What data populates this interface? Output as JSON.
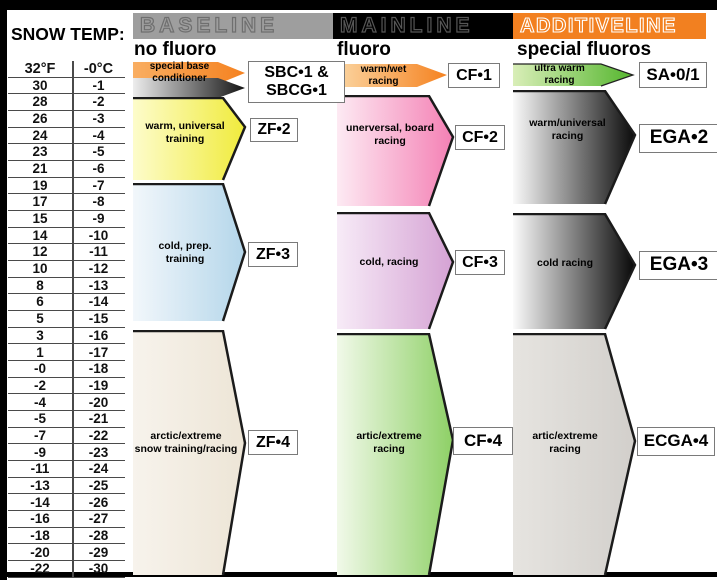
{
  "title": "SNOW TEMP:",
  "temp_table": {
    "rows": [
      [
        "32°F",
        "-0°C"
      ],
      [
        "30",
        "-1"
      ],
      [
        "28",
        "-2"
      ],
      [
        "26",
        "-3"
      ],
      [
        "24",
        "-4"
      ],
      [
        "23",
        "-5"
      ],
      [
        "21",
        "-6"
      ],
      [
        "19",
        "-7"
      ],
      [
        "17",
        "-8"
      ],
      [
        "15",
        "-9"
      ],
      [
        "14",
        "-10"
      ],
      [
        "12",
        "-11"
      ],
      [
        "10",
        "-12"
      ],
      [
        "8",
        "-13"
      ],
      [
        "6",
        "-14"
      ],
      [
        "5",
        "-15"
      ],
      [
        "3",
        "-16"
      ],
      [
        "1",
        "-17"
      ],
      [
        "-0",
        "-18"
      ],
      [
        "-2",
        "-19"
      ],
      [
        "-4",
        "-20"
      ],
      [
        "-5",
        "-21"
      ],
      [
        "-7",
        "-22"
      ],
      [
        "-9",
        "-23"
      ],
      [
        "-11",
        "-24"
      ],
      [
        "-13",
        "-25"
      ],
      [
        "-14",
        "-26"
      ],
      [
        "-16",
        "-27"
      ],
      [
        "-18",
        "-28"
      ],
      [
        "-20",
        "-29"
      ],
      [
        "-22",
        "-30"
      ]
    ]
  },
  "headers": {
    "baseline": {
      "title": "BASELINE",
      "sub": "no fluoro",
      "bar_color": "#9e9e9e",
      "outline_color": "#6f6f6f"
    },
    "mainline": {
      "title": "MAINLINE",
      "sub": "fluoro",
      "bar_color": "#000000",
      "outline_color": "#565656"
    },
    "additiveline": {
      "title": "ADDITIVELINE",
      "sub": "special fluoros",
      "bar_color": "#f28020",
      "outline_color": "#ffffff"
    }
  },
  "bands": {
    "baseline": [
      {
        "label": "special base\nconditioner",
        "product_line1": "SBC•1 &",
        "product_line2": "SBCG•1",
        "from": "#f9ae62",
        "to": "#f58220"
      },
      {
        "from": "#ededed",
        "to": "#141414"
      },
      {
        "label": "warm, universal\ntraining",
        "product": "ZF•2",
        "from": "#fdfccb",
        "to": "#f0eb3c"
      },
      {
        "label": "cold, prep.\ntraining",
        "product": "ZF•3",
        "from": "#f2f7fb",
        "to": "#b4d6ea"
      },
      {
        "label": "arctic/extreme\nsnow training/racing",
        "product": "ZF•4",
        "from": "#f7f3ec",
        "to": "#ede5d6"
      }
    ],
    "mainline": [
      {
        "label": "warm/wet\nracing",
        "product": "CF•1",
        "from": "#fbd5a1",
        "to": "#f58220"
      },
      {
        "label": "unerversal, board\nracing",
        "product": "CF•2",
        "from": "#fdeaf3",
        "to": "#f480b4"
      },
      {
        "label": "cold, racing",
        "product": "CF•3",
        "from": "#f7ebf7",
        "to": "#d5a2d4"
      },
      {
        "label": "artic/extreme\nracing",
        "product": "CF•4",
        "from": "#f1f9e9",
        "to": "#8ed066"
      }
    ],
    "additiveline": [
      {
        "label": "ultra warm\nracing",
        "product": "SA•0/1",
        "from": "#d9eeb8",
        "to": "#55b62e"
      },
      {
        "label": "warm/universal\nracing",
        "product": "EGA•2",
        "from": "#fafafa",
        "to": "#0a0a0a"
      },
      {
        "label": "cold racing",
        "product": "EGA•3",
        "from": "#fbfbfb",
        "to": "#070707"
      },
      {
        "label": "artic/extreme\nracing",
        "product": "ECGA•4",
        "from": "#e6e4e0",
        "to": "#d2cfcb"
      }
    ]
  },
  "chart_data": {
    "type": "table",
    "title": "SNOW TEMP:",
    "temperature_f": [
      "32",
      "30",
      "28",
      "26",
      "24",
      "23",
      "21",
      "19",
      "17",
      "15",
      "14",
      "12",
      "10",
      "8",
      "6",
      "5",
      "3",
      "1",
      "-0",
      "-2",
      "-4",
      "-5",
      "-7",
      "-9",
      "-11",
      "-13",
      "-14",
      "-16",
      "-18",
      "-20",
      "-22"
    ],
    "temperature_c": [
      "-0",
      "-1",
      "-2",
      "-3",
      "-4",
      "-5",
      "-6",
      "-7",
      "-8",
      "-9",
      "-10",
      "-11",
      "-12",
      "-13",
      "-14",
      "-15",
      "-16",
      "-17",
      "-18",
      "-19",
      "-20",
      "-21",
      "-22",
      "-23",
      "-24",
      "-25",
      "-26",
      "-27",
      "-28",
      "-29",
      "-30"
    ],
    "series": [
      {
        "name": "BASELINE (no fluoro)",
        "entries": [
          {
            "use": "special base conditioner",
            "product": "SBC•1 & SBCG•1",
            "approx_range_c": "0 to -1"
          },
          {
            "use": "warm, universal training",
            "product": "ZF•2",
            "approx_range_c": "-2 to -6"
          },
          {
            "use": "cold, prep. training",
            "product": "ZF•3",
            "approx_range_c": "-7 to -15"
          },
          {
            "use": "arctic/extreme snow training/racing",
            "product": "ZF•4",
            "approx_range_c": "-16 to -30"
          }
        ]
      },
      {
        "name": "MAINLINE (fluoro)",
        "entries": [
          {
            "use": "warm/wet racing",
            "product": "CF•1",
            "approx_range_c": "0 to -1"
          },
          {
            "use": "unerversal, board racing",
            "product": "CF•2",
            "approx_range_c": "-2 to -8"
          },
          {
            "use": "cold, racing",
            "product": "CF•3",
            "approx_range_c": "-9 to -15"
          },
          {
            "use": "artic/extreme racing",
            "product": "CF•4",
            "approx_range_c": "-16 to -30"
          }
        ]
      },
      {
        "name": "ADDITIVELINE (special fluoros)",
        "entries": [
          {
            "use": "ultra warm racing",
            "product": "SA•0/1",
            "approx_range_c": "0 to -1"
          },
          {
            "use": "warm/universal racing",
            "product": "EGA•2",
            "approx_range_c": "-2 to -8"
          },
          {
            "use": "cold racing",
            "product": "EGA•3",
            "approx_range_c": "-9 to -15"
          },
          {
            "use": "artic/extreme racing",
            "product": "ECGA•4",
            "approx_range_c": "-16 to -30"
          }
        ]
      }
    ]
  }
}
